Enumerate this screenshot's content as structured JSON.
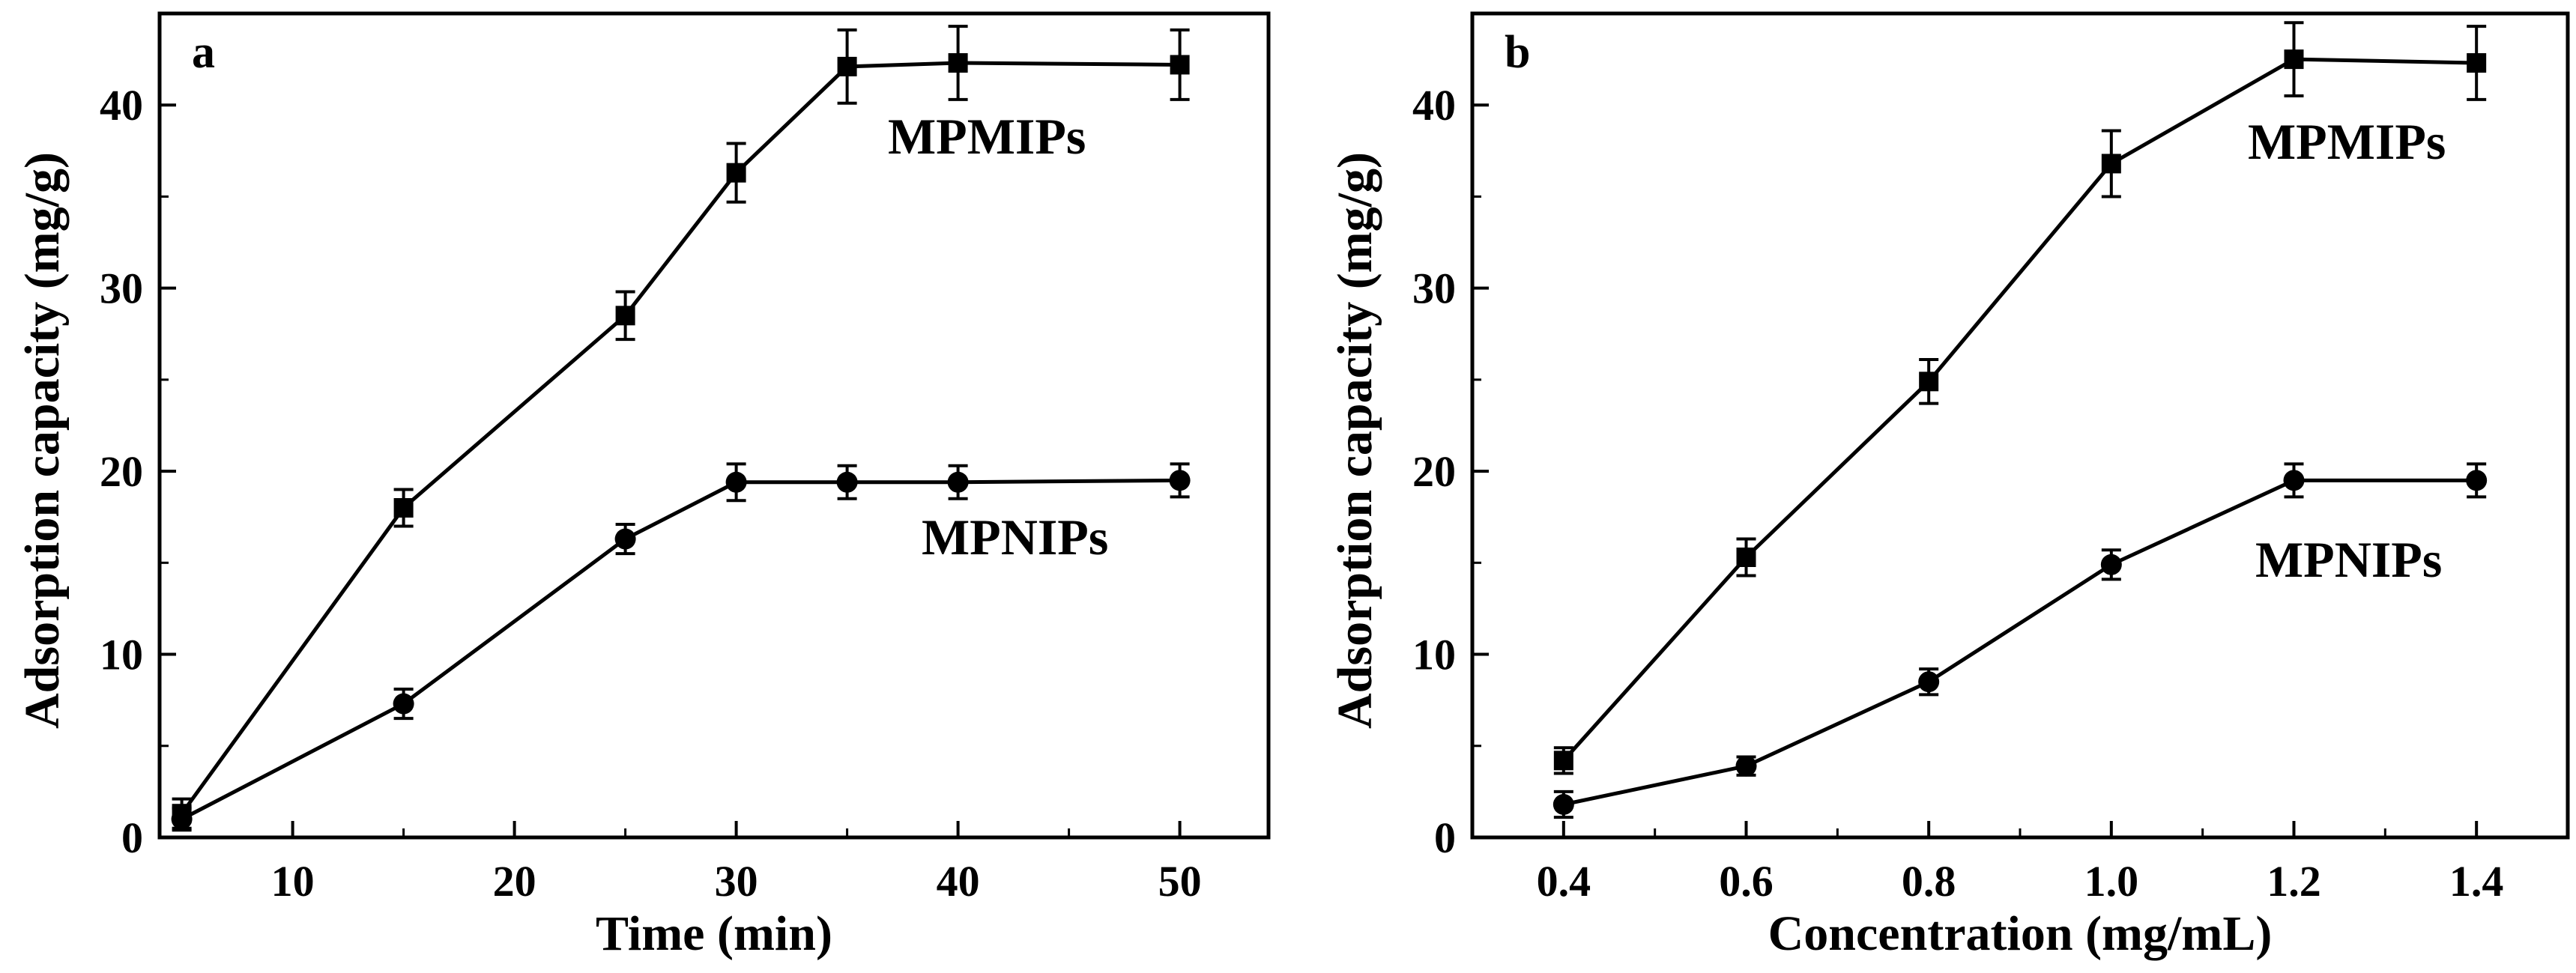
{
  "chart_data": [
    {
      "type": "line",
      "panel": "a",
      "title": "",
      "xlabel": "Time (min)",
      "ylabel": "Adsorption capacity (mg/g)",
      "xlim": [
        4,
        54
      ],
      "ylim": [
        0,
        45
      ],
      "xticks": [
        10,
        20,
        30,
        40,
        50
      ],
      "yticks": [
        0,
        10,
        20,
        30,
        40
      ],
      "x": [
        5,
        15,
        25,
        30,
        35,
        40,
        50
      ],
      "series": [
        {
          "name": "MPMIPs",
          "marker": "square",
          "label_text": "MPMIPs",
          "values": [
            1.3,
            18.0,
            28.5,
            36.3,
            42.1,
            42.3,
            42.2
          ],
          "errors": [
            0.8,
            1.0,
            1.3,
            1.6,
            2.0,
            2.0,
            1.9
          ]
        },
        {
          "name": "MPNIPs",
          "marker": "circle",
          "label_text": "MPNIPs",
          "values": [
            1.0,
            7.3,
            16.3,
            19.4,
            19.4,
            19.4,
            19.5
          ],
          "errors": [
            0.6,
            0.8,
            0.8,
            1.0,
            0.9,
            0.9,
            0.9
          ]
        }
      ],
      "grid": false
    },
    {
      "type": "line",
      "panel": "b",
      "title": "",
      "xlabel": "Concentration (mg/mL)",
      "ylabel": "Adsorption capacity (mg/g)",
      "xlim": [
        0.3,
        1.5
      ],
      "ylim": [
        0,
        45
      ],
      "xticks": [
        "0.4",
        "0.6",
        "0.8",
        "1.0",
        "1.2",
        "1.4"
      ],
      "yticks": [
        0,
        10,
        20,
        30,
        40
      ],
      "x": [
        0.4,
        0.6,
        0.8,
        1.0,
        1.2,
        1.4
      ],
      "series": [
        {
          "name": "MPMIPs",
          "marker": "square",
          "label_text": "MPMIPs",
          "values": [
            4.2,
            15.3,
            24.9,
            36.8,
            42.5,
            42.3
          ],
          "errors": [
            0.7,
            1.0,
            1.2,
            1.8,
            2.0,
            2.0
          ]
        },
        {
          "name": "MPNIPs",
          "marker": "circle",
          "label_text": "MPNIPs",
          "values": [
            1.8,
            3.9,
            8.5,
            14.9,
            19.5,
            19.5
          ],
          "errors": [
            0.7,
            0.5,
            0.7,
            0.8,
            0.9,
            0.9
          ]
        }
      ],
      "grid": false
    }
  ]
}
